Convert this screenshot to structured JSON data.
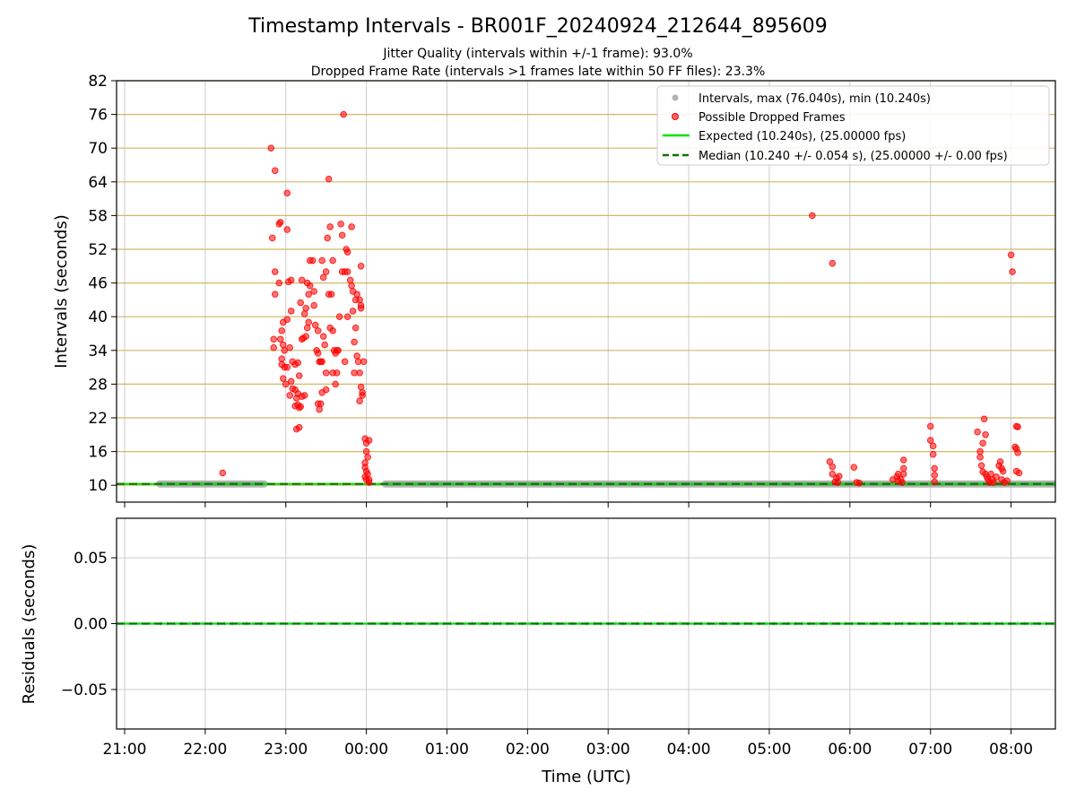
{
  "figure": {
    "title": "Timestamp Intervals - BR001F_20240924_212644_895609",
    "subtitle_1": "Jitter Quality (intervals within +/-1 frame): 93.0%",
    "subtitle_2": "Dropped Frame Rate (intervals >1 frames late within 50 FF files): 23.3%"
  },
  "colors": {
    "interval": "#a9a9a9",
    "dropped": "#ff0000",
    "expected": "#00e600",
    "median": "#007700",
    "hgrid": "#d2b866",
    "grid": "#cccccc"
  },
  "chart_data": [
    {
      "type": "scatter",
      "ylabel": "Intervals (seconds)",
      "ylim": [
        7,
        82
      ],
      "yticks": [
        "10",
        "16",
        "22",
        "28",
        "34",
        "40",
        "46",
        "52",
        "58",
        "64",
        "70",
        "76",
        "82"
      ],
      "ytick_values": [
        10,
        16,
        22,
        28,
        34,
        40,
        46,
        52,
        58,
        64,
        70,
        76,
        82
      ],
      "xlim": [
        "20:54",
        "08:33"
      ],
      "xticks": [
        "21:00",
        "22:00",
        "23:00",
        "00:00",
        "01:00",
        "02:00",
        "03:00",
        "04:00",
        "05:00",
        "06:00",
        "07:00",
        "08:00"
      ],
      "grid": true,
      "legend_position": "top-right",
      "legend": [
        "Intervals, max (76.040s), min (10.240s)",
        "Possible Dropped Frames",
        "Expected (10.240s), (25.00000 fps)",
        "Median (10.240 +/- 0.054 s), (25.00000 +/- 0.00 fps)"
      ],
      "series": [
        {
          "name": "Intervals, max (76.040s), min (10.240s)",
          "segments": [
            [
              "21:26",
              "22:44"
            ],
            [
              "00:14",
              "08:33"
            ]
          ],
          "y": 10.24
        },
        {
          "name": "Possible Dropped Frames",
          "points": [
            [
              "22:13",
              12.2
            ],
            [
              "22:49",
              70
            ],
            [
              "22:52",
              66
            ],
            [
              "22:55",
              56.5
            ],
            [
              "22:56",
              56.8
            ],
            [
              "22:50",
              54
            ],
            [
              "22:52",
              48
            ],
            [
              "23:01",
              62
            ],
            [
              "23:01",
              55.5
            ],
            [
              "22:55",
              46
            ],
            [
              "22:52",
              44
            ],
            [
              "23:04",
              46.5
            ],
            [
              "23:02",
              46.2
            ],
            [
              "22:58",
              39
            ],
            [
              "23:01",
              39.5
            ],
            [
              "23:04",
              41
            ],
            [
              "22:57",
              37.5
            ],
            [
              "22:51",
              36
            ],
            [
              "22:51",
              34.5
            ],
            [
              "22:56",
              36
            ],
            [
              "22:58",
              35
            ],
            [
              "22:59",
              34
            ],
            [
              "23:03",
              34.5
            ],
            [
              "22:57",
              32.5
            ],
            [
              "22:57",
              31.5
            ],
            [
              "22:59",
              31
            ],
            [
              "23:01",
              31
            ],
            [
              "23:05",
              32
            ],
            [
              "23:07",
              31.5
            ],
            [
              "23:09",
              31.8
            ],
            [
              "23:10",
              29.5
            ],
            [
              "22:58",
              29
            ],
            [
              "23:00",
              28
            ],
            [
              "23:04",
              28.5
            ],
            [
              "23:05",
              27.2
            ],
            [
              "23:07",
              27
            ],
            [
              "23:03",
              26
            ],
            [
              "23:08",
              25.5
            ],
            [
              "23:09",
              24.3
            ],
            [
              "23:10",
              23.8
            ],
            [
              "23:11",
              24
            ],
            [
              "23:07",
              24.1
            ],
            [
              "23:12",
              25.8
            ],
            [
              "23:14",
              26
            ],
            [
              "23:09",
              26.3
            ],
            [
              "23:08",
              20
            ],
            [
              "23:10",
              20.3
            ],
            [
              "23:12",
              36
            ],
            [
              "23:13",
              36.2
            ],
            [
              "23:15",
              36.5
            ],
            [
              "23:16",
              38
            ],
            [
              "23:17",
              39
            ],
            [
              "23:15",
              41.5
            ],
            [
              "23:14",
              40.5
            ],
            [
              "23:11",
              42.5
            ],
            [
              "23:12",
              46.5
            ],
            [
              "23:16",
              46
            ],
            [
              "23:17",
              44
            ],
            [
              "23:18",
              45.5
            ],
            [
              "23:18",
              50
            ],
            [
              "23:20",
              50
            ],
            [
              "23:21",
              44.5
            ],
            [
              "23:21",
              42
            ],
            [
              "23:22",
              38.5
            ],
            [
              "23:23",
              34
            ],
            [
              "23:24",
              33.5
            ],
            [
              "23:24",
              37.5
            ],
            [
              "23:26",
              32
            ],
            [
              "23:27",
              32
            ],
            [
              "23:25",
              32
            ],
            [
              "23:28",
              36.5
            ],
            [
              "23:29",
              35
            ],
            [
              "23:30",
              30
            ],
            [
              "23:30",
              27
            ],
            [
              "23:27",
              26.5
            ],
            [
              "23:26",
              24.5
            ],
            [
              "23:24",
              24.5
            ],
            [
              "23:25",
              23.5
            ],
            [
              "23:27",
              50
            ],
            [
              "23:28",
              47
            ],
            [
              "23:30",
              48
            ],
            [
              "23:31",
              54
            ],
            [
              "23:32",
              64.5
            ],
            [
              "23:33",
              56
            ],
            [
              "23:32",
              44
            ],
            [
              "23:34",
              44
            ],
            [
              "23:35",
              50
            ],
            [
              "23:33",
              38
            ],
            [
              "23:35",
              37.5
            ],
            [
              "23:36",
              34
            ],
            [
              "23:37",
              33.5
            ],
            [
              "23:38",
              34
            ],
            [
              "23:39",
              34
            ],
            [
              "23:35",
              30
            ],
            [
              "23:37",
              28
            ],
            [
              "23:38",
              30
            ],
            [
              "23:40",
              40
            ],
            [
              "23:41",
              56.5
            ],
            [
              "23:42",
              54.5
            ],
            [
              "23:42",
              48
            ],
            [
              "23:44",
              48
            ],
            [
              "23:45",
              52
            ],
            [
              "23:46",
              51.5
            ],
            [
              "23:46",
              48
            ],
            [
              "23:46",
              40
            ],
            [
              "23:44",
              32
            ],
            [
              "23:49",
              56
            ],
            [
              "23:48",
              46.5
            ],
            [
              "23:49",
              45.5
            ],
            [
              "23:50",
              44.5
            ],
            [
              "23:50",
              41
            ],
            [
              "23:52",
              43
            ],
            [
              "23:53",
              44
            ],
            [
              "23:55",
              43
            ],
            [
              "23:56",
              42
            ],
            [
              "23:56",
              41.5
            ],
            [
              "23:52",
              38
            ],
            [
              "23:51",
              35.5
            ],
            [
              "23:53",
              33
            ],
            [
              "23:54",
              32
            ],
            [
              "23:55",
              30
            ],
            [
              "23:51",
              30
            ],
            [
              "23:56",
              27.5
            ],
            [
              "23:57",
              26.5
            ],
            [
              "23:57",
              26
            ],
            [
              "23:55",
              25
            ],
            [
              "23:56",
              49
            ],
            [
              "23:43",
              76
            ],
            [
              "23:58",
              32
            ],
            [
              "23:59",
              18.3
            ],
            [
              "00:00",
              17.5
            ],
            [
              "00:00",
              16
            ],
            [
              "00:01",
              15
            ],
            [
              "00:02",
              18
            ],
            [
              "23:59",
              14
            ],
            [
              "23:59",
              13.2
            ],
            [
              "00:00",
              12.5
            ],
            [
              "00:01",
              12
            ],
            [
              "23:59",
              11.5
            ],
            [
              "00:00",
              11
            ],
            [
              "00:02",
              11
            ],
            [
              "00:02",
              10.5
            ],
            [
              "05:32",
              58
            ],
            [
              "05:47",
              49.5
            ],
            [
              "05:45",
              14.2
            ],
            [
              "05:47",
              13.3
            ],
            [
              "05:47",
              12
            ],
            [
              "05:50",
              11.3
            ],
            [
              "05:52",
              11.6
            ],
            [
              "05:49",
              10.6
            ],
            [
              "05:51",
              10.5
            ],
            [
              "06:03",
              13.2
            ],
            [
              "06:05",
              10.5
            ],
            [
              "06:07",
              10.4
            ],
            [
              "06:32",
              11
            ],
            [
              "06:35",
              11.5
            ],
            [
              "06:36",
              12
            ],
            [
              "06:38",
              11
            ],
            [
              "06:39",
              10.5
            ],
            [
              "06:36",
              10.8
            ],
            [
              "06:40",
              12
            ],
            [
              "06:40",
              14.5
            ],
            [
              "06:40",
              13
            ],
            [
              "07:00",
              20.5
            ],
            [
              "07:00",
              18
            ],
            [
              "07:02",
              17
            ],
            [
              "07:02",
              15.5
            ],
            [
              "07:03",
              13
            ],
            [
              "07:03",
              11.8
            ],
            [
              "07:03",
              10.6
            ],
            [
              "07:35",
              19.5
            ],
            [
              "07:39",
              17.5
            ],
            [
              "07:37",
              16
            ],
            [
              "07:37",
              15
            ],
            [
              "07:40",
              21.8
            ],
            [
              "07:41",
              19
            ],
            [
              "07:38",
              13.5
            ],
            [
              "07:39",
              12.4
            ],
            [
              "07:41",
              12
            ],
            [
              "07:42",
              11.5
            ],
            [
              "07:43",
              11
            ],
            [
              "07:44",
              10.5
            ],
            [
              "07:45",
              12
            ],
            [
              "07:46",
              11
            ],
            [
              "07:47",
              10.5
            ],
            [
              "07:49",
              11.5
            ],
            [
              "07:51",
              13.5
            ],
            [
              "07:52",
              14.2
            ],
            [
              "07:53",
              13
            ],
            [
              "07:54",
              12.5
            ],
            [
              "07:53",
              11
            ],
            [
              "07:55",
              10.5
            ],
            [
              "07:57",
              10.8
            ],
            [
              "08:00",
              51
            ],
            [
              "08:01",
              48
            ],
            [
              "08:04",
              20.5
            ],
            [
              "08:05",
              20.4
            ],
            [
              "08:03",
              16.8
            ],
            [
              "08:04",
              16.5
            ],
            [
              "08:05",
              15.8
            ],
            [
              "08:04",
              12.5
            ],
            [
              "08:06",
              12.2
            ]
          ]
        },
        {
          "name": "Expected (10.240s), (25.00000 fps)",
          "y": 10.24
        },
        {
          "name": "Median (10.240 +/- 0.054 s), (25.00000 +/- 0.00 fps)",
          "y": 10.24
        }
      ]
    },
    {
      "type": "scatter",
      "ylabel": "Residuals (seconds)",
      "xlabel": "Time (UTC)",
      "ylim": [
        -0.08,
        0.08
      ],
      "yticks": [
        "0.05",
        "0.00",
        "−0.05"
      ],
      "ytick_values": [
        0.05,
        0.0,
        -0.05
      ],
      "xlim": [
        "20:54",
        "08:33"
      ],
      "xticks": [
        "21:00",
        "22:00",
        "23:00",
        "00:00",
        "01:00",
        "02:00",
        "03:00",
        "04:00",
        "05:00",
        "06:00",
        "07:00",
        "08:00"
      ],
      "grid": true,
      "series": [
        {
          "name": "Intervals, max (76.040s), min (10.240s)",
          "segments": [
            [
              "21:26",
              "22:44"
            ],
            [
              "00:14",
              "08:33"
            ]
          ],
          "y": 0.0
        },
        {
          "name": "Median (10.240 +/- 0.054 s), (25.00000 +/- 0.00 fps)",
          "y": 0.0
        }
      ]
    }
  ]
}
